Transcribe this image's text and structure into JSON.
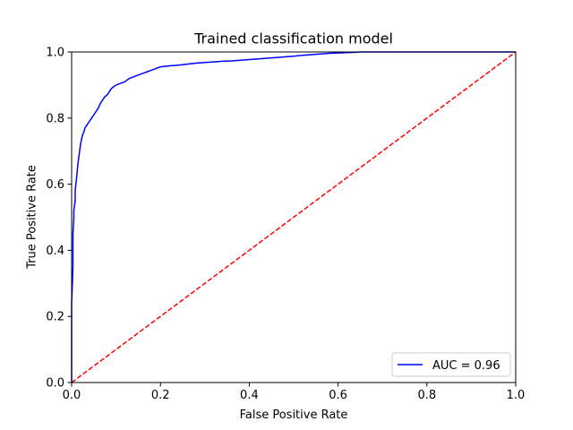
{
  "chart_data": {
    "type": "line",
    "title": "Trained classification model",
    "xlabel": "False Positive Rate",
    "ylabel": "True Positive Rate",
    "xlim": [
      0,
      1
    ],
    "ylim": [
      0,
      1
    ],
    "xticks": [
      "0.0",
      "0.2",
      "0.4",
      "0.6",
      "0.8",
      "1.0"
    ],
    "yticks": [
      "0.0",
      "0.2",
      "0.4",
      "0.6",
      "0.8",
      "1.0"
    ],
    "grid": false,
    "legend_position": "lower-right",
    "series": [
      {
        "name": "AUC = 0.96",
        "color": "#0000ff",
        "style": "solid",
        "x": [
          0.0,
          0.0,
          0.003,
          0.003,
          0.005,
          0.005,
          0.008,
          0.008,
          0.012,
          0.014,
          0.016,
          0.018,
          0.02,
          0.023,
          0.025,
          0.028,
          0.03,
          0.035,
          0.04,
          0.045,
          0.05,
          0.055,
          0.06,
          0.065,
          0.07,
          0.075,
          0.08,
          0.085,
          0.09,
          0.095,
          0.1,
          0.11,
          0.12,
          0.13,
          0.14,
          0.15,
          0.16,
          0.17,
          0.18,
          0.19,
          0.2,
          0.22,
          0.24,
          0.26,
          0.28,
          0.3,
          0.32,
          0.34,
          0.36,
          0.38,
          0.4,
          0.42,
          0.44,
          0.46,
          0.48,
          0.5,
          0.52,
          0.54,
          0.56,
          0.58,
          0.6,
          0.62,
          0.64,
          0.65,
          1.0
        ],
        "y": [
          0.0,
          0.24,
          0.35,
          0.45,
          0.5,
          0.52,
          0.55,
          0.58,
          0.63,
          0.66,
          0.68,
          0.7,
          0.72,
          0.74,
          0.75,
          0.76,
          0.77,
          0.78,
          0.79,
          0.8,
          0.81,
          0.82,
          0.83,
          0.845,
          0.855,
          0.865,
          0.87,
          0.88,
          0.89,
          0.895,
          0.9,
          0.905,
          0.91,
          0.92,
          0.925,
          0.93,
          0.935,
          0.94,
          0.945,
          0.95,
          0.955,
          0.958,
          0.96,
          0.963,
          0.966,
          0.968,
          0.97,
          0.972,
          0.973,
          0.975,
          0.977,
          0.979,
          0.981,
          0.983,
          0.985,
          0.987,
          0.99,
          0.992,
          0.994,
          0.996,
          0.997,
          0.998,
          0.999,
          1.0,
          1.0
        ]
      },
      {
        "name": "",
        "color": "#ff0000",
        "style": "dashed",
        "x": [
          0,
          1
        ],
        "y": [
          0,
          1
        ]
      }
    ]
  }
}
